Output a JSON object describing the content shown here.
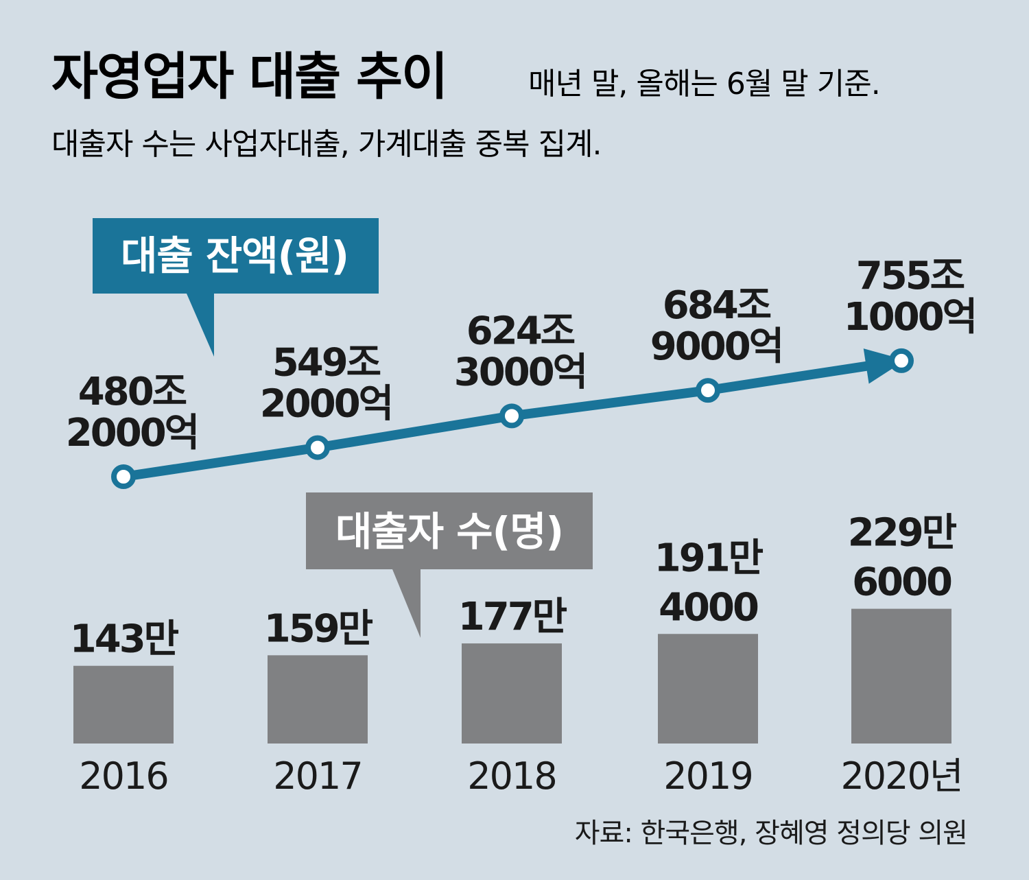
{
  "title": "자영업자 대출 추이",
  "subtitle": "매년 말, 올해는 6월 말 기준.",
  "note": "대출자 수는 사업자대출, 가계대출 중복 집계.",
  "source": "자료: 한국은행, 장혜영 정의당 의원",
  "colors": {
    "background": "#d3dde5",
    "line": "#1a7499",
    "bar": "#808183"
  },
  "chart_data": [
    {
      "type": "line",
      "callout": "대출 잔액(원)",
      "categories": [
        "2016",
        "2017",
        "2018",
        "2019",
        "2020년"
      ],
      "values": [
        480.2,
        549.2,
        624.3,
        684.9,
        755.1
      ],
      "value_labels": [
        [
          "480조",
          "2000억"
        ],
        [
          "549조",
          "2000억"
        ],
        [
          "624조",
          "3000억"
        ],
        [
          "684조",
          "9000억"
        ],
        [
          "755조",
          "1000억"
        ]
      ]
    },
    {
      "type": "bar",
      "callout": "대출자 수(명)",
      "categories": [
        "2016",
        "2017",
        "2018",
        "2019",
        "2020년"
      ],
      "values": [
        143,
        159,
        177,
        191.4,
        229.6
      ],
      "value_labels": [
        [
          "143만"
        ],
        [
          "159만"
        ],
        [
          "177만"
        ],
        [
          "191만",
          "4000"
        ],
        [
          "229만",
          "6000"
        ]
      ]
    }
  ]
}
